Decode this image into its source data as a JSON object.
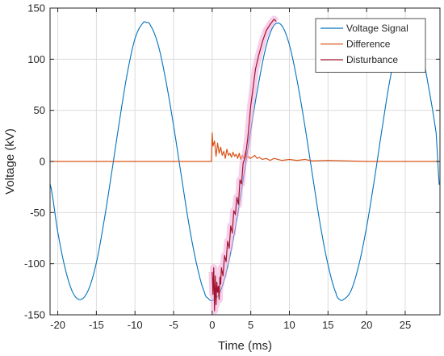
{
  "chart_data": {
    "type": "line",
    "xlabel": "Time (ms)",
    "ylabel": "Voltage (kV)",
    "xlim": [
      -21,
      29.5
    ],
    "ylim": [
      -150,
      150
    ],
    "x_ticks": [
      -20,
      -15,
      -10,
      -5,
      0,
      5,
      10,
      15,
      20,
      25
    ],
    "y_ticks": [
      150,
      100,
      50,
      0,
      -50,
      -100,
      -150
    ],
    "grid": true,
    "legend_position": "top-right",
    "series": [
      {
        "name": "Voltage Signal",
        "color": "#0072BD",
        "x": [
          -21,
          -20,
          -19,
          -18,
          -17,
          -16,
          -15,
          -14,
          -13,
          -12,
          -11,
          -10,
          -9,
          -8.5,
          -8,
          -7,
          -6,
          -5,
          -4,
          -3,
          -2,
          -1,
          -0.5,
          0,
          1,
          2,
          3,
          4,
          5,
          6,
          7,
          8,
          9,
          10,
          11,
          12,
          13,
          14,
          15,
          16,
          16.5,
          17,
          18,
          19,
          20,
          21,
          22,
          23,
          24,
          25,
          26,
          27,
          28,
          29,
          29.5
        ],
        "values": [
          -22,
          -69,
          -106,
          -129,
          -135,
          -125,
          -99,
          -58,
          -10,
          40,
          86,
          120,
          135,
          136,
          133,
          114,
          79,
          35,
          -14,
          -62,
          -101,
          -128,
          -134,
          -136,
          -128,
          -103,
          -65,
          -18,
          31,
          76,
          113,
          133,
          133,
          114,
          79,
          35,
          -14,
          -62,
          -101,
          -128,
          -135,
          -135,
          -126,
          -101,
          -64,
          -18,
          32,
          79,
          113,
          134,
          132,
          112,
          74,
          28,
          -31
        ]
      },
      {
        "name": "Difference",
        "color": "#D95319",
        "x": [
          -21,
          -10,
          -1,
          -0.1,
          0,
          0.1,
          0.3,
          0.5,
          0.7,
          0.9,
          1.1,
          1.3,
          1.5,
          1.7,
          1.9,
          2.1,
          2.3,
          2.5,
          2.7,
          2.9,
          3.1,
          3.3,
          3.5,
          3.7,
          3.9,
          4.1,
          4.3,
          4.5,
          4.7,
          4.9,
          5.2,
          5.5,
          5.8,
          6.1,
          6.5,
          7,
          7.5,
          8,
          9,
          10,
          11,
          12,
          13,
          15,
          20,
          25,
          29.5
        ],
        "values": [
          0,
          0,
          0,
          0,
          28,
          15,
          20,
          5,
          18,
          8,
          14,
          6,
          10,
          3,
          12,
          6,
          8,
          4,
          9,
          5,
          7,
          3,
          8,
          2,
          6,
          3,
          10,
          4,
          5,
          3,
          4,
          6,
          3,
          4,
          2,
          3,
          1,
          3,
          1,
          2,
          1,
          2,
          0.5,
          1,
          0,
          0,
          0
        ]
      },
      {
        "name": "Disturbance",
        "color": "#A2142F",
        "x": [
          0,
          0.1,
          0.2,
          0.3,
          0.4,
          0.5,
          0.6,
          0.7,
          0.8,
          0.9,
          1.0,
          1.1,
          1.2,
          1.4,
          1.6,
          1.8,
          2.0,
          2.2,
          2.4,
          2.6,
          2.8,
          3.0,
          3.2,
          3.4,
          3.6,
          3.8,
          4.0,
          4.3,
          4.6,
          5.0,
          5.3,
          5.6,
          6.0,
          6.5,
          7.0,
          7.5,
          8.0,
          8.3
        ],
        "values": [
          -108,
          -130,
          -104,
          -146,
          -112,
          -140,
          -118,
          -128,
          -122,
          -135,
          -113,
          -120,
          -104,
          -112,
          -92,
          -98,
          -78,
          -85,
          -63,
          -70,
          -48,
          -52,
          -35,
          -42,
          -18,
          -22,
          -2,
          5,
          22,
          55,
          72,
          90,
          103,
          117,
          128,
          134,
          139,
          137
        ]
      }
    ]
  }
}
